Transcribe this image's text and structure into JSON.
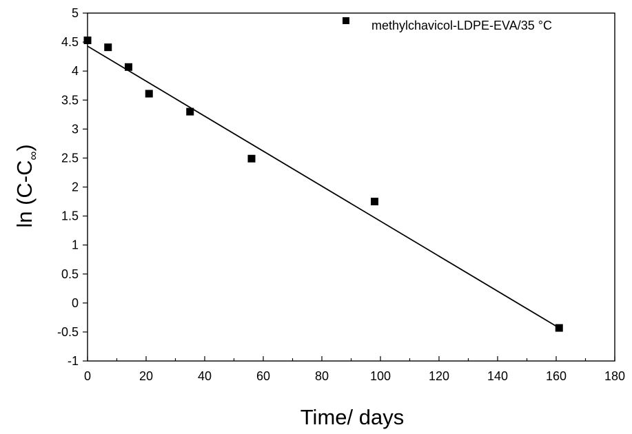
{
  "chart_data": {
    "type": "scatter",
    "xlabel": "Time/ days",
    "ylabel": {
      "main": "ln (C-C",
      "subscript": "∞",
      "close": ")"
    },
    "xlim": [
      0,
      180
    ],
    "ylim": [
      -1,
      5
    ],
    "x_ticks": [
      0,
      20,
      40,
      60,
      80,
      100,
      120,
      140,
      160,
      180
    ],
    "y_ticks": [
      -1,
      -0.5,
      0,
      0.5,
      1,
      1.5,
      2,
      2.5,
      3,
      3.5,
      4,
      4.5,
      5
    ],
    "grid": false,
    "legend_position": "top-right",
    "series": [
      {
        "name": "methylchavicol-LDPE-EVA/35 °C",
        "marker": "square",
        "color": "#000000",
        "x": [
          0,
          7,
          14,
          21,
          35,
          56,
          98,
          161
        ],
        "y": [
          4.53,
          4.41,
          4.07,
          3.61,
          3.3,
          2.49,
          1.75,
          -0.43
        ]
      }
    ],
    "fit_line": {
      "x": [
        0,
        161
      ],
      "y": [
        4.43,
        -0.43
      ]
    }
  }
}
